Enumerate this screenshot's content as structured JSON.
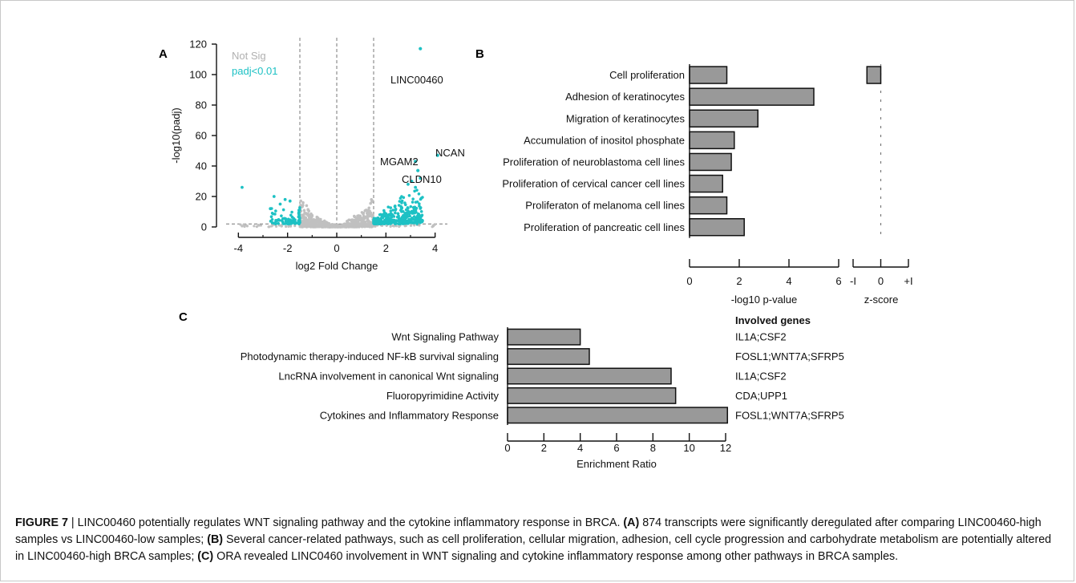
{
  "chart_data": [
    {
      "panel": "A",
      "type": "scatter",
      "xlabel": "log2 Fold Change",
      "ylabel": "-log10(padj)",
      "xlim": [
        -4.5,
        4.5
      ],
      "ylim": [
        0,
        120
      ],
      "xticks": [
        "-4",
        "-2",
        "0",
        "2",
        "4"
      ],
      "yticks": [
        "0",
        "20",
        "40",
        "60",
        "80",
        "100",
        "120"
      ],
      "thresholds": {
        "x": [
          -1.5,
          0,
          1.5
        ],
        "y": 2
      },
      "legend": [
        {
          "name": "Not Sig",
          "color": "#c0c0c0"
        },
        {
          "name": "padj<0.01",
          "color": "#1dc1c4"
        }
      ],
      "annotations": [
        {
          "text": "LINC00460",
          "x": 3.4,
          "y": 117
        },
        {
          "text": "NCAN",
          "x": 4.1,
          "y": 47
        },
        {
          "text": "MGAM2",
          "x": 3.2,
          "y": 43
        },
        {
          "text": "CLDN10",
          "x": 3.3,
          "y": 37
        }
      ]
    },
    {
      "panel": "B",
      "type": "bar",
      "orientation": "horizontal",
      "xlabel": "-log10 p-value",
      "xlim": [
        0,
        6
      ],
      "xticks": [
        "0",
        "2",
        "4",
        "6"
      ],
      "categories": [
        "Cell proliferation",
        "Adhesion of keratinocytes",
        "Migration of keratinocytes",
        "Accumulation of inositol phosphate",
        "Proliferation of neuroblastoma cell lines",
        "Proliferation of cervical cancer cell lines",
        "Proliferaton of melanoma cell lines",
        "Proliferation of pancreatic cell lines"
      ],
      "values": [
        1.5,
        5.0,
        2.75,
        1.8,
        1.68,
        1.33,
        1.5,
        2.2
      ],
      "zscore": {
        "xlabel": "z-score",
        "xticks": [
          "-I",
          "0",
          "+I"
        ],
        "values": [
          -0.5,
          null,
          null,
          null,
          null,
          null,
          null,
          null
        ]
      }
    },
    {
      "panel": "C",
      "type": "bar",
      "orientation": "horizontal",
      "xlabel": "Enrichment Ratio",
      "xlim": [
        0,
        12
      ],
      "xticks": [
        "0",
        "2",
        "4",
        "6",
        "8",
        "10",
        "12"
      ],
      "categories": [
        "Wnt Signaling Pathway",
        "Photodynamic therapy-induced NF-kB survival signaling",
        "LncRNA involvement in canonical Wnt signaling",
        "Fluoropyrimidine Activity",
        "Cytokines and Inflammatory Response"
      ],
      "values": [
        4.0,
        4.5,
        9.0,
        9.25,
        12.1
      ],
      "genes_header": "Involved genes",
      "genes": [
        "IL1A;CSF2",
        "FOSL1;WNT7A;SFRP5",
        "IL1A;CSF2",
        "CDA;UPP1",
        "FOSL1;WNT7A;SFRP5"
      ]
    }
  ],
  "panel_labels": {
    "a": "A",
    "b": "B",
    "c": "C"
  },
  "colors": {
    "bar_fill": "#999999",
    "bar_stroke": "#111111",
    "sig": "#1dc1c4",
    "nonsig": "#c0c0c0"
  },
  "caption": {
    "lead": "FIGURE 7",
    "sep": " | ",
    "title": "LINC00460 potentially regulates WNT signaling pathway and the cytokine inflammatory response in BRCA. ",
    "a_tag": "(A)",
    "a_text": " 874 transcripts were significantly deregulated after comparing LINC00460-high samples vs LINC00460-low samples; ",
    "b_tag": "(B)",
    "b_text": " Several cancer-related pathways, such as cell proliferation, cellular migration, adhesion, cell cycle progression and carbohydrate metabolism are potentially altered in LINC00460-high BRCA samples; ",
    "c_tag": "(C)",
    "c_text": " ORA revealed LINC0460 involvement in WNT signaling and cytokine inflammatory response among other pathways in BRCA samples."
  }
}
